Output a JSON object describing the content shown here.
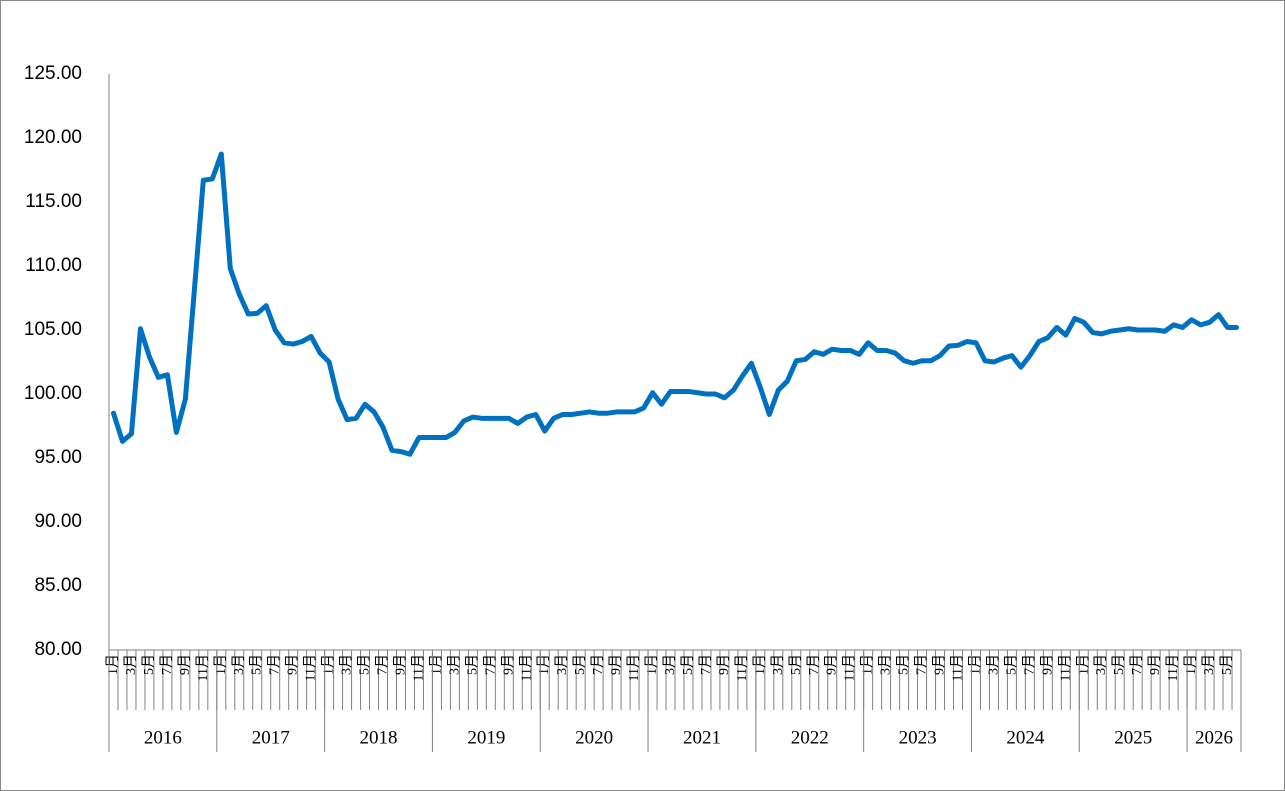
{
  "chart_data": {
    "type": "line",
    "color": "#0070c0",
    "categories": [
      "1月",
      null,
      "3月",
      null,
      "5月",
      null,
      "7月",
      null,
      "9月",
      null,
      "11月",
      null,
      "1月",
      null,
      "3月",
      null,
      "5月",
      null,
      "7月",
      null,
      "9月",
      null,
      "11月",
      null,
      "1月",
      null,
      "3月",
      null,
      "5月",
      null,
      "7月",
      null,
      "9月",
      null,
      "11月",
      null,
      "1月",
      null,
      "3月",
      null,
      "5月",
      null,
      "7月",
      null,
      "9月",
      null,
      "11月",
      null,
      "1月",
      null,
      "3月",
      null,
      "5月",
      null,
      "7月",
      null,
      "9月",
      null,
      "11月",
      null,
      "1月",
      null,
      "3月",
      null,
      "5月",
      null,
      "7月",
      null,
      "9月",
      null,
      "11月",
      null,
      "1月",
      null,
      "3月",
      null,
      "5月",
      null,
      "7月",
      null,
      "9月",
      null,
      "11月",
      null,
      "1月",
      null,
      "3月",
      null,
      "5月",
      null,
      "7月",
      null,
      "9月",
      null,
      "11月",
      null,
      "1月",
      null,
      "3月",
      null,
      "5月",
      null,
      "7月",
      null,
      "9月",
      null,
      "11月",
      null,
      "1月",
      null,
      "3月",
      null,
      "5月",
      null,
      "7月",
      null,
      "9月",
      null,
      "11月",
      null,
      "1月",
      null,
      "3月",
      null,
      "5月",
      null
    ],
    "groups": [
      {
        "label": "2016",
        "span": 12
      },
      {
        "label": "2017",
        "span": 12
      },
      {
        "label": "2018",
        "span": 12
      },
      {
        "label": "2019",
        "span": 12
      },
      {
        "label": "2020",
        "span": 12
      },
      {
        "label": "2021",
        "span": 12
      },
      {
        "label": "2022",
        "span": 12
      },
      {
        "label": "2023",
        "span": 12
      },
      {
        "label": "2024",
        "span": 12
      },
      {
        "label": "2025",
        "span": 12
      },
      {
        "label": "2026",
        "span": 6
      }
    ],
    "values": [
      98.5,
      96.3,
      96.9,
      105.1,
      102.9,
      101.3,
      101.5,
      97.0,
      99.6,
      108.1,
      116.7,
      116.8,
      118.75,
      109.8,
      107.8,
      106.25,
      106.3,
      106.9,
      105.0,
      104.0,
      103.9,
      104.1,
      104.5,
      103.2,
      102.5,
      99.6,
      98.0,
      98.1,
      99.2,
      98.6,
      97.4,
      95.6,
      95.5,
      95.3,
      96.6,
      96.6,
      96.6,
      96.6,
      97.0,
      97.9,
      98.2,
      98.1,
      98.1,
      98.1,
      98.1,
      97.7,
      98.2,
      98.4,
      97.1,
      98.1,
      98.4,
      98.4,
      98.5,
      98.6,
      98.5,
      98.5,
      98.6,
      98.6,
      98.6,
      98.9,
      100.1,
      99.2,
      100.2,
      100.2,
      100.2,
      100.1,
      100.0,
      100.0,
      99.7,
      100.3,
      101.4,
      102.4,
      100.5,
      98.4,
      100.3,
      101.0,
      102.6,
      102.7,
      103.3,
      103.1,
      103.5,
      103.4,
      103.4,
      103.1,
      104.0,
      103.4,
      103.4,
      103.2,
      102.6,
      102.4,
      102.6,
      102.6,
      103.0,
      103.75,
      103.8,
      104.1,
      104.0,
      102.6,
      102.5,
      102.8,
      103.0,
      102.1,
      103.0,
      104.1,
      104.4,
      105.2,
      104.6,
      105.9,
      105.6,
      104.8,
      104.7,
      104.9,
      105.0,
      105.1,
      105.0,
      105.0,
      105.0,
      104.9,
      105.4,
      105.2,
      105.8,
      105.4,
      105.6,
      106.2,
      105.2,
      105.2
    ],
    "ylim": [
      80,
      125
    ],
    "yticks": [
      {
        "value": 80,
        "label": "80.00"
      },
      {
        "value": 85,
        "label": "85.00"
      },
      {
        "value": 90,
        "label": "90.00"
      },
      {
        "value": 95,
        "label": "95.00"
      },
      {
        "value": 100,
        "label": "100.00"
      },
      {
        "value": 105,
        "label": "105.00"
      },
      {
        "value": 110,
        "label": "110.00"
      },
      {
        "value": 115,
        "label": "115.00"
      },
      {
        "value": 120,
        "label": "120.00"
      },
      {
        "value": 125,
        "label": "125.00"
      }
    ],
    "grid": false
  }
}
